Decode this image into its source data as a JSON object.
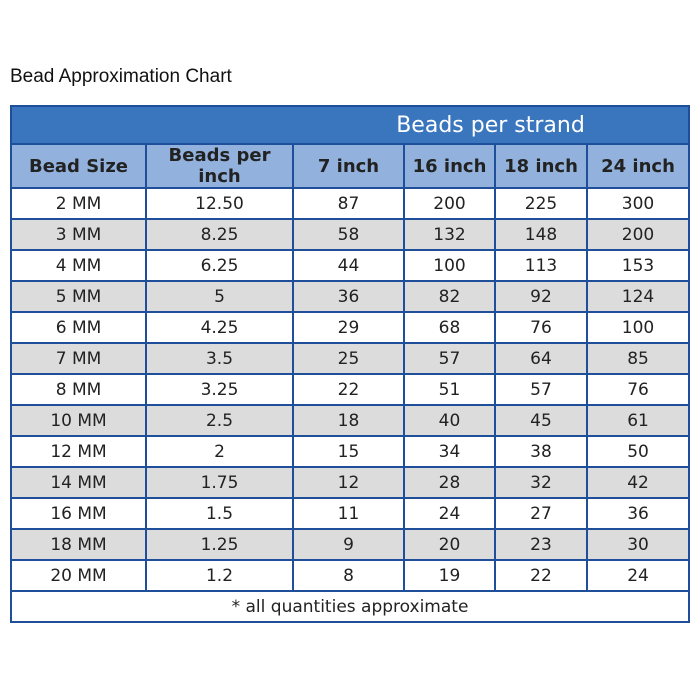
{
  "title": "Bead Approximation Chart",
  "group_header": "Beads per strand",
  "columns": [
    "Bead Size",
    "Beads per inch",
    "7 inch",
    "16 inch",
    "18 inch",
    "24 inch"
  ],
  "rows": [
    [
      "2 MM",
      "12.50",
      "87",
      "200",
      "225",
      "300"
    ],
    [
      "3 MM",
      "8.25",
      "58",
      "132",
      "148",
      "200"
    ],
    [
      "4 MM",
      "6.25",
      "44",
      "100",
      "113",
      "153"
    ],
    [
      "5 MM",
      "5",
      "36",
      "82",
      "92",
      "124"
    ],
    [
      "6 MM",
      "4.25",
      "29",
      "68",
      "76",
      "100"
    ],
    [
      "7 MM",
      "3.5",
      "25",
      "57",
      "64",
      "85"
    ],
    [
      "8 MM",
      "3.25",
      "22",
      "51",
      "57",
      "76"
    ],
    [
      "10 MM",
      "2.5",
      "18",
      "40",
      "45",
      "61"
    ],
    [
      "12 MM",
      "2",
      "15",
      "34",
      "38",
      "50"
    ],
    [
      "14 MM",
      "1.75",
      "12",
      "28",
      "32",
      "42"
    ],
    [
      "16 MM",
      "1.5",
      "11",
      "24",
      "27",
      "36"
    ],
    [
      "18 MM",
      "1.25",
      "9",
      "20",
      "23",
      "30"
    ],
    [
      "20 MM",
      "1.2",
      "8",
      "19",
      "22",
      "24"
    ]
  ],
  "footnote": "* all quantities approximate",
  "colors": {
    "band": "#3a76be",
    "header": "#92b2dd",
    "border": "#1f4f9a",
    "stripe": "#dcdcdc"
  }
}
